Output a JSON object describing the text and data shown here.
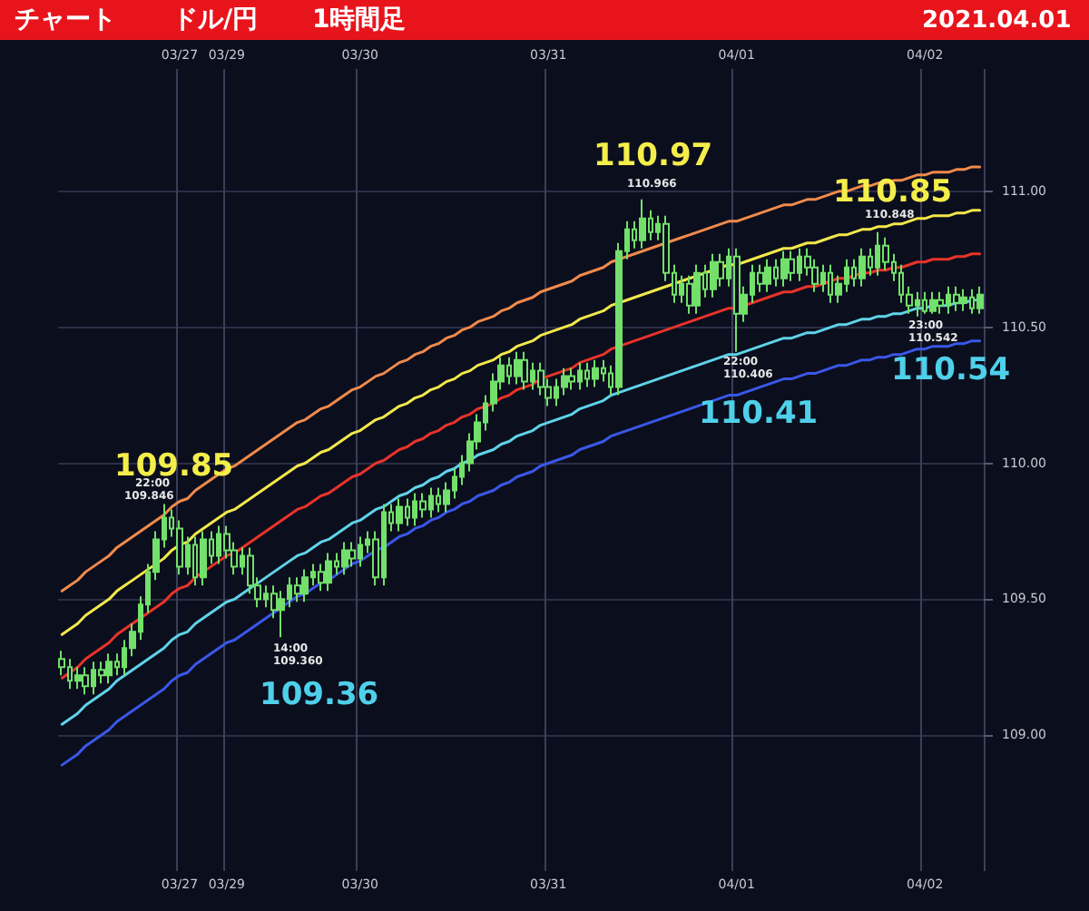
{
  "chart_data": {
    "type": "candlestick",
    "title": "ドル/円",
    "subtitle": "1時間足",
    "categories": [
      null,
      null,
      null,
      null,
      null,
      null,
      null,
      null,
      null,
      null,
      null,
      null,
      null,
      null,
      null,
      "03/27",
      null,
      null,
      null,
      null,
      null,
      "03/29",
      null,
      null,
      null,
      null,
      null,
      null,
      null,
      null,
      null,
      null,
      null,
      null,
      null,
      null,
      null,
      null,
      "03/30",
      null,
      null,
      null,
      null,
      null,
      null,
      null,
      null,
      null,
      null,
      null,
      null,
      null,
      null,
      null,
      null,
      null,
      null,
      null,
      null,
      null,
      null,
      null,
      "03/31",
      null,
      null,
      null,
      null,
      null,
      null,
      null,
      null,
      null,
      null,
      null,
      null,
      null,
      null,
      null,
      null,
      null,
      null,
      null,
      null,
      null,
      null,
      null,
      "04/01",
      null,
      null,
      null,
      null,
      null,
      null,
      null,
      null,
      null,
      null,
      null,
      null,
      null,
      null,
      null,
      null,
      null,
      null,
      null,
      null,
      null,
      null,
      null,
      "04/02",
      null,
      null,
      null,
      null,
      null,
      null,
      null
    ],
    "ylim": [
      108.5,
      111.45
    ],
    "yticks": [
      {
        "value": 109,
        "label": "109.00"
      },
      {
        "value": 109.5,
        "label": "109.50"
      },
      {
        "value": 110,
        "label": "110.00"
      },
      {
        "value": 110.5,
        "label": "110.50"
      },
      {
        "value": 111,
        "label": "111.00"
      }
    ],
    "grid": true,
    "series": [
      {
        "type": "line",
        "color": "#f08a4b",
        "values": [
          109.53,
          109.55,
          109.57,
          109.6,
          109.62,
          109.64,
          109.66,
          109.69,
          109.71,
          109.73,
          109.75,
          109.77,
          109.79,
          109.81,
          109.84,
          109.86,
          109.87,
          109.9,
          109.92,
          109.94,
          109.96,
          109.98,
          109.99,
          110.01,
          110.03,
          110.05,
          110.07,
          110.09,
          110.11,
          110.13,
          110.15,
          110.16,
          110.18,
          110.2,
          110.21,
          110.23,
          110.25,
          110.27,
          110.28,
          110.3,
          110.32,
          110.33,
          110.35,
          110.37,
          110.38,
          110.4,
          110.41,
          110.43,
          110.44,
          110.46,
          110.47,
          110.49,
          110.5,
          110.52,
          110.53,
          110.54,
          110.56,
          110.57,
          110.59,
          110.6,
          110.61,
          110.63,
          110.64,
          110.65,
          110.66,
          110.67,
          110.69,
          110.7,
          110.71,
          110.72,
          110.74,
          110.75,
          110.76,
          110.77,
          110.78,
          110.79,
          110.8,
          110.81,
          110.82,
          110.83,
          110.84,
          110.85,
          110.86,
          110.87,
          110.88,
          110.89,
          110.89,
          110.9,
          110.91,
          110.92,
          110.93,
          110.94,
          110.95,
          110.95,
          110.96,
          110.97,
          110.97,
          110.98,
          110.99,
          111.0,
          111.0,
          111.01,
          111.02,
          111.02,
          111.03,
          111.03,
          111.04,
          111.04,
          111.05,
          111.06,
          111.06,
          111.07,
          111.07,
          111.07,
          111.08,
          111.08,
          111.09,
          111.09
        ]
      },
      {
        "type": "line",
        "color": "#f2e84a",
        "values": [
          109.37,
          109.39,
          109.41,
          109.44,
          109.46,
          109.48,
          109.5,
          109.53,
          109.55,
          109.57,
          109.59,
          109.61,
          109.63,
          109.65,
          109.68,
          109.7,
          109.71,
          109.74,
          109.76,
          109.78,
          109.8,
          109.82,
          109.83,
          109.85,
          109.87,
          109.89,
          109.91,
          109.93,
          109.95,
          109.97,
          109.99,
          110.0,
          110.02,
          110.04,
          110.05,
          110.07,
          110.09,
          110.11,
          110.12,
          110.14,
          110.16,
          110.17,
          110.19,
          110.21,
          110.22,
          110.24,
          110.25,
          110.27,
          110.28,
          110.3,
          110.31,
          110.33,
          110.34,
          110.36,
          110.37,
          110.38,
          110.4,
          110.41,
          110.43,
          110.44,
          110.45,
          110.47,
          110.48,
          110.49,
          110.5,
          110.51,
          110.53,
          110.54,
          110.55,
          110.56,
          110.58,
          110.59,
          110.6,
          110.61,
          110.62,
          110.63,
          110.64,
          110.65,
          110.66,
          110.67,
          110.68,
          110.69,
          110.7,
          110.71,
          110.72,
          110.73,
          110.73,
          110.74,
          110.75,
          110.76,
          110.77,
          110.78,
          110.79,
          110.79,
          110.8,
          110.81,
          110.81,
          110.82,
          110.83,
          110.84,
          110.84,
          110.85,
          110.86,
          110.86,
          110.87,
          110.87,
          110.88,
          110.88,
          110.89,
          110.9,
          110.9,
          110.91,
          110.91,
          110.91,
          110.92,
          110.92,
          110.93,
          110.93
        ]
      },
      {
        "type": "line",
        "color": "#e8332a",
        "values": [
          109.21,
          109.23,
          109.25,
          109.28,
          109.3,
          109.32,
          109.34,
          109.37,
          109.39,
          109.41,
          109.43,
          109.45,
          109.47,
          109.49,
          109.52,
          109.54,
          109.55,
          109.58,
          109.6,
          109.62,
          109.64,
          109.66,
          109.67,
          109.69,
          109.71,
          109.73,
          109.75,
          109.77,
          109.79,
          109.81,
          109.83,
          109.84,
          109.86,
          109.88,
          109.89,
          109.91,
          109.93,
          109.95,
          109.96,
          109.98,
          110.0,
          110.01,
          110.03,
          110.05,
          110.06,
          110.08,
          110.09,
          110.11,
          110.12,
          110.14,
          110.15,
          110.17,
          110.18,
          110.2,
          110.21,
          110.22,
          110.24,
          110.25,
          110.27,
          110.28,
          110.29,
          110.31,
          110.32,
          110.33,
          110.34,
          110.35,
          110.37,
          110.38,
          110.39,
          110.4,
          110.42,
          110.43,
          110.44,
          110.45,
          110.46,
          110.47,
          110.48,
          110.49,
          110.5,
          110.51,
          110.52,
          110.53,
          110.54,
          110.55,
          110.56,
          110.57,
          110.57,
          110.58,
          110.59,
          110.6,
          110.61,
          110.62,
          110.63,
          110.63,
          110.64,
          110.65,
          110.65,
          110.66,
          110.67,
          110.68,
          110.68,
          110.69,
          110.7,
          110.7,
          110.71,
          110.71,
          110.72,
          110.72,
          110.73,
          110.74,
          110.74,
          110.75,
          110.75,
          110.75,
          110.76,
          110.76,
          110.77,
          110.77
        ]
      },
      {
        "type": "line",
        "color": "#5fd3e8",
        "values": [
          109.04,
          109.06,
          109.08,
          109.11,
          109.13,
          109.15,
          109.17,
          109.2,
          109.22,
          109.24,
          109.26,
          109.28,
          109.3,
          109.32,
          109.35,
          109.37,
          109.38,
          109.41,
          109.43,
          109.45,
          109.47,
          109.49,
          109.5,
          109.52,
          109.54,
          109.56,
          109.58,
          109.6,
          109.62,
          109.64,
          109.66,
          109.67,
          109.69,
          109.71,
          109.72,
          109.74,
          109.76,
          109.78,
          109.79,
          109.81,
          109.83,
          109.84,
          109.86,
          109.88,
          109.89,
          109.91,
          109.92,
          109.94,
          109.95,
          109.97,
          109.98,
          110.0,
          110.01,
          110.03,
          110.04,
          110.05,
          110.07,
          110.08,
          110.1,
          110.11,
          110.12,
          110.14,
          110.15,
          110.16,
          110.17,
          110.18,
          110.2,
          110.21,
          110.22,
          110.23,
          110.25,
          110.26,
          110.27,
          110.28,
          110.29,
          110.3,
          110.31,
          110.32,
          110.33,
          110.34,
          110.35,
          110.36,
          110.37,
          110.38,
          110.39,
          110.4,
          110.4,
          110.41,
          110.42,
          110.43,
          110.44,
          110.45,
          110.46,
          110.46,
          110.47,
          110.48,
          110.48,
          110.49,
          110.5,
          110.51,
          110.51,
          110.52,
          110.53,
          110.53,
          110.54,
          110.54,
          110.55,
          110.55,
          110.56,
          110.57,
          110.57,
          110.58,
          110.58,
          110.58,
          110.59,
          110.59,
          110.6,
          110.6
        ]
      },
      {
        "type": "line",
        "color": "#3a57e8",
        "values": [
          108.89,
          108.91,
          108.93,
          108.96,
          108.98,
          109.0,
          109.02,
          109.05,
          109.07,
          109.09,
          109.11,
          109.13,
          109.15,
          109.17,
          109.2,
          109.22,
          109.23,
          109.26,
          109.28,
          109.3,
          109.32,
          109.34,
          109.35,
          109.37,
          109.39,
          109.41,
          109.43,
          109.45,
          109.47,
          109.49,
          109.51,
          109.52,
          109.54,
          109.56,
          109.57,
          109.59,
          109.61,
          109.63,
          109.64,
          109.66,
          109.68,
          109.69,
          109.71,
          109.73,
          109.74,
          109.76,
          109.77,
          109.79,
          109.8,
          109.82,
          109.83,
          109.85,
          109.86,
          109.88,
          109.89,
          109.9,
          109.92,
          109.93,
          109.95,
          109.96,
          109.97,
          109.99,
          110.0,
          110.01,
          110.02,
          110.03,
          110.05,
          110.06,
          110.07,
          110.08,
          110.1,
          110.11,
          110.12,
          110.13,
          110.14,
          110.15,
          110.16,
          110.17,
          110.18,
          110.19,
          110.2,
          110.21,
          110.22,
          110.23,
          110.24,
          110.25,
          110.25,
          110.26,
          110.27,
          110.28,
          110.29,
          110.3,
          110.31,
          110.31,
          110.32,
          110.33,
          110.33,
          110.34,
          110.35,
          110.36,
          110.36,
          110.37,
          110.38,
          110.38,
          110.39,
          110.39,
          110.4,
          110.4,
          110.41,
          110.42,
          110.42,
          110.43,
          110.43,
          110.43,
          110.44,
          110.44,
          110.45,
          110.45
        ]
      },
      {
        "type": "candlestick",
        "color": "#72e06a",
        "ohlc": [
          [
            109.28,
            109.31,
            109.22,
            109.25
          ],
          [
            109.25,
            109.28,
            109.17,
            109.2
          ],
          [
            109.2,
            109.25,
            109.17,
            109.22
          ],
          [
            109.22,
            109.25,
            109.15,
            109.18
          ],
          [
            109.18,
            109.27,
            109.15,
            109.24
          ],
          [
            109.24,
            109.27,
            109.19,
            109.22
          ],
          [
            109.22,
            109.3,
            109.19,
            109.27
          ],
          [
            109.27,
            109.3,
            109.22,
            109.25
          ],
          [
            109.25,
            109.35,
            109.22,
            109.32
          ],
          [
            109.32,
            109.41,
            109.29,
            109.38
          ],
          [
            109.38,
            109.51,
            109.35,
            109.48
          ],
          [
            109.48,
            109.63,
            109.45,
            109.6
          ],
          [
            109.6,
            109.75,
            109.57,
            109.72
          ],
          [
            109.72,
            109.85,
            109.69,
            109.8
          ],
          [
            109.8,
            109.83,
            109.73,
            109.76
          ],
          [
            109.76,
            109.79,
            109.59,
            109.62
          ],
          [
            109.62,
            109.73,
            109.59,
            109.7
          ],
          [
            109.7,
            109.73,
            109.55,
            109.58
          ],
          [
            109.58,
            109.75,
            109.55,
            109.72
          ],
          [
            109.72,
            109.75,
            109.63,
            109.66
          ],
          [
            109.66,
            109.77,
            109.63,
            109.74
          ],
          [
            109.74,
            109.77,
            109.65,
            109.68
          ],
          [
            109.68,
            109.71,
            109.59,
            109.62
          ],
          [
            109.62,
            109.69,
            109.59,
            109.66
          ],
          [
            109.66,
            109.69,
            109.52,
            109.55
          ],
          [
            109.55,
            109.58,
            109.47,
            109.5
          ],
          [
            109.5,
            109.55,
            109.47,
            109.52
          ],
          [
            109.52,
            109.55,
            109.43,
            109.46
          ],
          [
            109.46,
            109.53,
            109.36,
            109.5
          ],
          [
            109.5,
            109.58,
            109.47,
            109.55
          ],
          [
            109.55,
            109.58,
            109.49,
            109.52
          ],
          [
            109.52,
            109.61,
            109.49,
            109.58
          ],
          [
            109.58,
            109.63,
            109.55,
            109.6
          ],
          [
            109.6,
            109.63,
            109.53,
            109.56
          ],
          [
            109.56,
            109.67,
            109.53,
            109.64
          ],
          [
            109.64,
            109.67,
            109.59,
            109.62
          ],
          [
            109.62,
            109.71,
            109.59,
            109.68
          ],
          [
            109.68,
            109.71,
            109.62,
            109.65
          ],
          [
            109.65,
            109.73,
            109.62,
            109.7
          ],
          [
            109.7,
            109.75,
            109.67,
            109.72
          ],
          [
            109.72,
            109.75,
            109.55,
            109.58
          ],
          [
            109.58,
            109.85,
            109.55,
            109.82
          ],
          [
            109.82,
            109.85,
            109.75,
            109.78
          ],
          [
            109.78,
            109.87,
            109.75,
            109.84
          ],
          [
            109.84,
            109.87,
            109.77,
            109.8
          ],
          [
            109.8,
            109.89,
            109.77,
            109.86
          ],
          [
            109.86,
            109.89,
            109.8,
            109.83
          ],
          [
            109.83,
            109.91,
            109.8,
            109.88
          ],
          [
            109.88,
            109.91,
            109.82,
            109.85
          ],
          [
            109.85,
            109.93,
            109.82,
            109.9
          ],
          [
            109.9,
            109.98,
            109.87,
            109.95
          ],
          [
            109.95,
            110.03,
            109.92,
            110.0
          ],
          [
            110.0,
            110.11,
            109.97,
            110.08
          ],
          [
            110.08,
            110.18,
            110.05,
            110.15
          ],
          [
            110.15,
            110.25,
            110.12,
            110.22
          ],
          [
            110.22,
            110.33,
            110.19,
            110.3
          ],
          [
            110.3,
            110.39,
            110.27,
            110.36
          ],
          [
            110.36,
            110.39,
            110.29,
            110.32
          ],
          [
            110.32,
            110.41,
            110.29,
            110.38
          ],
          [
            110.38,
            110.41,
            110.27,
            110.3
          ],
          [
            110.3,
            110.37,
            110.27,
            110.34
          ],
          [
            110.34,
            110.37,
            110.25,
            110.28
          ],
          [
            110.28,
            110.31,
            110.21,
            110.24
          ],
          [
            110.24,
            110.31,
            110.21,
            110.28
          ],
          [
            110.28,
            110.35,
            110.25,
            110.32
          ],
          [
            110.32,
            110.35,
            110.27,
            110.3
          ],
          [
            110.3,
            110.37,
            110.27,
            110.34
          ],
          [
            110.34,
            110.37,
            110.28,
            110.31
          ],
          [
            110.31,
            110.38,
            110.28,
            110.35
          ],
          [
            110.35,
            110.38,
            110.3,
            110.33
          ],
          [
            110.33,
            110.36,
            110.25,
            110.28
          ],
          [
            110.28,
            110.81,
            110.25,
            110.78
          ],
          [
            110.78,
            110.89,
            110.75,
            110.86
          ],
          [
            110.86,
            110.89,
            110.79,
            110.82
          ],
          [
            110.82,
            110.97,
            110.79,
            110.9
          ],
          [
            110.9,
            110.93,
            110.82,
            110.85
          ],
          [
            110.85,
            110.91,
            110.82,
            110.88
          ],
          [
            110.88,
            110.91,
            110.67,
            110.7
          ],
          [
            110.7,
            110.73,
            110.59,
            110.62
          ],
          [
            110.62,
            110.69,
            110.59,
            110.66
          ],
          [
            110.66,
            110.69,
            110.55,
            110.58
          ],
          [
            110.58,
            110.73,
            110.55,
            110.7
          ],
          [
            110.7,
            110.73,
            110.61,
            110.64
          ],
          [
            110.64,
            110.77,
            110.61,
            110.74
          ],
          [
            110.74,
            110.77,
            110.65,
            110.68
          ],
          [
            110.68,
            110.79,
            110.65,
            110.76
          ],
          [
            110.76,
            110.79,
            110.41,
            110.55
          ],
          [
            110.55,
            110.65,
            110.52,
            110.62
          ],
          [
            110.62,
            110.73,
            110.59,
            110.7
          ],
          [
            110.7,
            110.73,
            110.63,
            110.66
          ],
          [
            110.66,
            110.75,
            110.63,
            110.72
          ],
          [
            110.72,
            110.75,
            110.65,
            110.68
          ],
          [
            110.68,
            110.78,
            110.65,
            110.75
          ],
          [
            110.75,
            110.78,
            110.67,
            110.7
          ],
          [
            110.7,
            110.79,
            110.67,
            110.76
          ],
          [
            110.76,
            110.79,
            110.69,
            110.72
          ],
          [
            110.72,
            110.75,
            110.63,
            110.66
          ],
          [
            110.66,
            110.73,
            110.63,
            110.7
          ],
          [
            110.7,
            110.73,
            110.59,
            110.62
          ],
          [
            110.62,
            110.69,
            110.59,
            110.66
          ],
          [
            110.66,
            110.75,
            110.63,
            110.72
          ],
          [
            110.72,
            110.75,
            110.65,
            110.68
          ],
          [
            110.68,
            110.79,
            110.65,
            110.76
          ],
          [
            110.76,
            110.79,
            110.69,
            110.72
          ],
          [
            110.72,
            110.85,
            110.69,
            110.8
          ],
          [
            110.8,
            110.83,
            110.71,
            110.74
          ],
          [
            110.74,
            110.77,
            110.67,
            110.7
          ],
          [
            110.7,
            110.73,
            110.59,
            110.62
          ],
          [
            110.62,
            110.65,
            110.55,
            110.58
          ],
          [
            110.58,
            110.63,
            110.54,
            110.6
          ],
          [
            110.6,
            110.63,
            110.55,
            110.56
          ],
          [
            110.56,
            110.63,
            110.55,
            110.6
          ],
          [
            110.6,
            110.63,
            110.55,
            110.58
          ],
          [
            110.58,
            110.65,
            110.55,
            110.62
          ],
          [
            110.62,
            110.65,
            110.56,
            110.59
          ],
          [
            110.59,
            110.64,
            110.56,
            110.61
          ],
          [
            110.61,
            110.64,
            110.55,
            110.57
          ],
          [
            110.57,
            110.65,
            110.55,
            110.62
          ]
        ]
      }
    ],
    "annotations": [
      "チャート",
      "2021.04.01",
      "109.85",
      "22:00",
      "109.846",
      "109.36",
      "14:00",
      "109.360",
      "110.97",
      "110.966",
      "110.85",
      "110.848",
      "110.41",
      "22:00",
      "110.406",
      "110.54",
      "23:00",
      "110.542"
    ]
  }
}
